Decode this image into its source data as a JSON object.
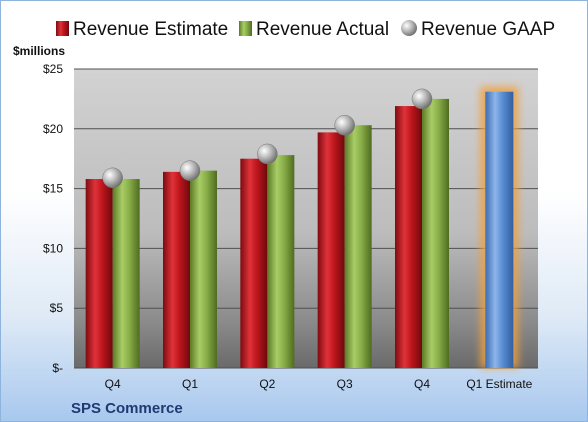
{
  "chart_data": {
    "type": "bar",
    "ylabel": "$millions",
    "ylim": [
      0,
      25
    ],
    "yticks": [
      {
        "value": 25,
        "label": "$25"
      },
      {
        "value": 20,
        "label": "$20"
      },
      {
        "value": 15,
        "label": "$15"
      },
      {
        "value": 10,
        "label": "$10"
      },
      {
        "value": 5,
        "label": "$5"
      },
      {
        "value": 0,
        "label": "$-"
      }
    ],
    "categories": [
      "Q4",
      "Q1",
      "Q2",
      "Q3",
      "Q4",
      "Q1 Estimate"
    ],
    "series": [
      {
        "name": "Revenue Estimate",
        "values": [
          15.8,
          16.4,
          17.5,
          19.7,
          21.9,
          null
        ],
        "color": "#c0161d"
      },
      {
        "name": "Revenue Actual",
        "values": [
          15.8,
          16.5,
          17.8,
          20.3,
          22.5,
          null
        ],
        "color": "#8bb04a"
      },
      {
        "name": "Revenue GAAP",
        "values": [
          15.9,
          16.5,
          17.9,
          20.3,
          22.5,
          null
        ],
        "color": "#a8a8a8"
      },
      {
        "name": "Q1 Estimate",
        "values": [
          null,
          null,
          null,
          null,
          null,
          23.1
        ],
        "color": "#5b8fd4"
      }
    ],
    "legend_position": "top",
    "grid": true,
    "company": "SPS Commerce"
  }
}
